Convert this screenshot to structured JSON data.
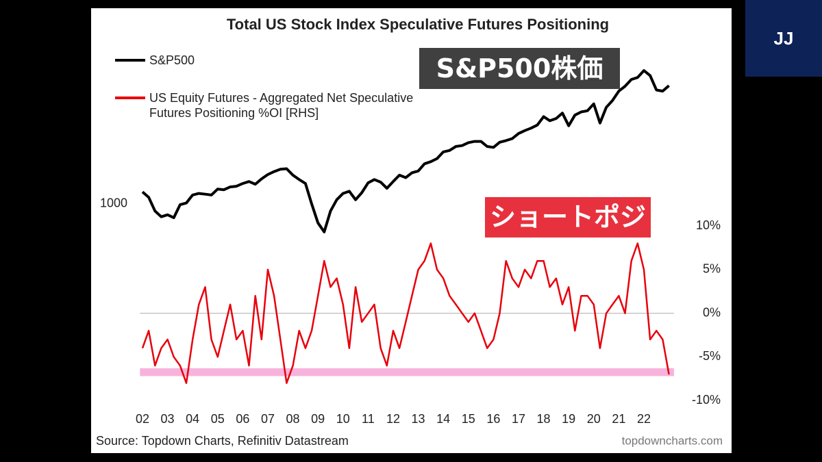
{
  "chart_data": {
    "type": "line",
    "title": "Total US Stock Index Speculative Futures Positioning",
    "x": [
      2002,
      2002.25,
      2002.5,
      2002.75,
      2003,
      2003.25,
      2003.5,
      2003.75,
      2004,
      2004.25,
      2004.5,
      2004.75,
      2005,
      2005.25,
      2005.5,
      2005.75,
      2006,
      2006.25,
      2006.5,
      2006.75,
      2007,
      2007.25,
      2007.5,
      2007.75,
      2008,
      2008.25,
      2008.5,
      2008.75,
      2009,
      2009.25,
      2009.5,
      2009.75,
      2010,
      2010.25,
      2010.5,
      2010.75,
      2011,
      2011.25,
      2011.5,
      2011.75,
      2012,
      2012.25,
      2012.5,
      2012.75,
      2013,
      2013.25,
      2013.5,
      2013.75,
      2014,
      2014.25,
      2014.5,
      2014.75,
      2015,
      2015.25,
      2015.5,
      2015.75,
      2016,
      2016.25,
      2016.5,
      2016.75,
      2017,
      2017.25,
      2017.5,
      2017.75,
      2018,
      2018.25,
      2018.5,
      2018.75,
      2019,
      2019.25,
      2019.5,
      2019.75,
      2020,
      2020.25,
      2020.5,
      2020.75,
      2021,
      2021.25,
      2021.5,
      2021.75,
      2022,
      2022.25,
      2022.5,
      2022.75,
      2023
    ],
    "xlim": [
      2001.9,
      2023.2
    ],
    "xticks": [
      {
        "value": 2002,
        "label": "02"
      },
      {
        "value": 2003,
        "label": "03"
      },
      {
        "value": 2004,
        "label": "04"
      },
      {
        "value": 2005,
        "label": "05"
      },
      {
        "value": 2006,
        "label": "06"
      },
      {
        "value": 2007,
        "label": "07"
      },
      {
        "value": 2008,
        "label": "08"
      },
      {
        "value": 2009,
        "label": "09"
      },
      {
        "value": 2010,
        "label": "10"
      },
      {
        "value": 2011,
        "label": "11"
      },
      {
        "value": 2012,
        "label": "12"
      },
      {
        "value": 2013,
        "label": "13"
      },
      {
        "value": 2014,
        "label": "14"
      },
      {
        "value": 2015,
        "label": "15"
      },
      {
        "value": 2016,
        "label": "16"
      },
      {
        "value": 2017,
        "label": "17"
      },
      {
        "value": 2018,
        "label": "18"
      },
      {
        "value": 2019,
        "label": "19"
      },
      {
        "value": 2020,
        "label": "20"
      },
      {
        "value": 2021,
        "label": "21"
      },
      {
        "value": 2022,
        "label": "22"
      }
    ],
    "ylim": [
      90,
      9000
    ],
    "yscale": "log",
    "yticks": [
      1000
    ],
    "y2lim": [
      -11,
      34
    ],
    "y2ticks": [
      {
        "value": 10,
        "label": "10%"
      },
      {
        "value": 5,
        "label": "5%"
      },
      {
        "value": 0,
        "label": "0%"
      },
      {
        "value": -5,
        "label": "-5%"
      },
      {
        "value": -10,
        "label": "-10%"
      }
    ],
    "zeroline": true,
    "highlight_band": {
      "y2range": [
        -7.2,
        -6.3
      ],
      "color": "#f7b3dc"
    },
    "series": [
      {
        "name": "S&P500",
        "color": "#000000",
        "values": [
          1150,
          1080,
          920,
          860,
          880,
          850,
          990,
          1010,
          1110,
          1130,
          1120,
          1110,
          1190,
          1180,
          1220,
          1230,
          1270,
          1300,
          1260,
          1340,
          1410,
          1460,
          1500,
          1510,
          1400,
          1330,
          1270,
          1000,
          800,
          720,
          920,
          1050,
          1130,
          1160,
          1050,
          1140,
          1280,
          1330,
          1290,
          1200,
          1300,
          1400,
          1360,
          1440,
          1470,
          1600,
          1640,
          1700,
          1840,
          1870,
          1960,
          1980,
          2050,
          2080,
          2080,
          1960,
          1940,
          2060,
          2100,
          2150,
          2280,
          2360,
          2430,
          2520,
          2780,
          2650,
          2720,
          2900,
          2500,
          2830,
          2940,
          2980,
          3230,
          2580,
          3100,
          3360,
          3750,
          3970,
          4300,
          4400,
          4770,
          4500,
          3800,
          3750,
          4000
        ]
      },
      {
        "name": "US Equity Futures - Aggregated Net Speculative Futures Positioning %OI [RHS]",
        "color": "#e8000b",
        "axis": "y2",
        "values": [
          -4,
          -2,
          -6,
          -4,
          -3,
          -5,
          -6,
          -8,
          -3,
          1,
          3,
          -3,
          -5,
          -2,
          1,
          -3,
          -2,
          -6,
          2,
          -3,
          5,
          2,
          -3,
          -8,
          -6,
          -2,
          -4,
          -2,
          2,
          6,
          3,
          4,
          1,
          -4,
          3,
          -1,
          0,
          1,
          -4,
          -6,
          -2,
          -4,
          -1,
          2,
          5,
          6,
          8,
          5,
          4,
          2,
          1,
          0,
          -1,
          0,
          -2,
          -4,
          -3,
          0,
          6,
          4,
          3,
          5,
          4,
          6,
          6,
          3,
          4,
          1,
          3,
          -2,
          2,
          2,
          1,
          -4,
          0,
          1,
          2,
          0,
          6,
          8,
          5,
          -3,
          -2,
          -3,
          -7
        ]
      }
    ],
    "annotations": [
      "S&P500株価",
      "ショートポジ"
    ],
    "source": "Source: Topdown Charts, Refinitiv Datastream",
    "credit": "topdowncharts.com",
    "logo": "JJ"
  }
}
